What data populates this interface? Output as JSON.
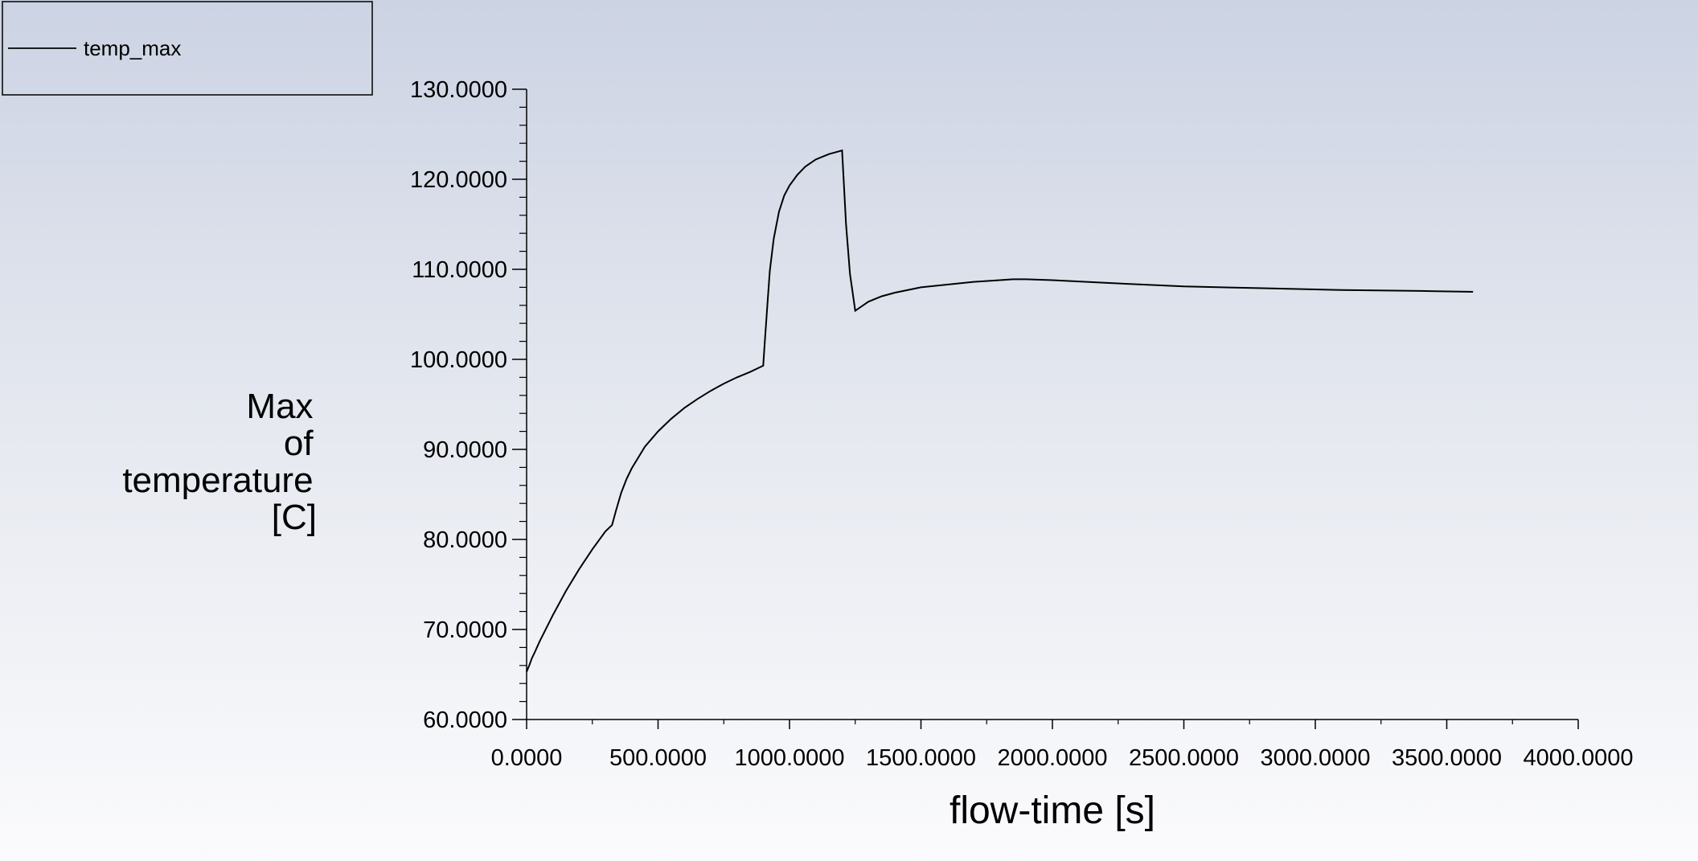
{
  "chart_data": {
    "type": "line",
    "title": "",
    "xlabel": "flow-time [s]",
    "ylabel": [
      "Max",
      "of",
      "temperature",
      "[C]"
    ],
    "xlim": [
      0,
      4000
    ],
    "ylim": [
      60,
      130
    ],
    "x_ticks": [
      0,
      500,
      1000,
      1500,
      2000,
      2500,
      3000,
      3500,
      4000
    ],
    "x_tick_labels": [
      "0.0000",
      "500.0000",
      "1000.0000",
      "1500.0000",
      "2000.0000",
      "2500.0000",
      "3000.0000",
      "3500.0000",
      "4000.0000"
    ],
    "y_ticks": [
      60,
      70,
      80,
      90,
      100,
      110,
      120,
      130
    ],
    "y_tick_labels": [
      "60.0000",
      "70.0000",
      "80.0000",
      "90.0000",
      "100.0000",
      "110.0000",
      "120.0000",
      "130.0000"
    ],
    "grid": false,
    "legend_position": "top-left",
    "line_color": "#000000",
    "series": [
      {
        "name": "temp_max",
        "x": [
          0,
          10,
          20,
          30,
          50,
          100,
          150,
          200,
          250,
          300,
          325,
          340,
          360,
          380,
          400,
          450,
          500,
          550,
          600,
          650,
          700,
          750,
          800,
          850,
          900,
          905,
          915,
          925,
          940,
          960,
          980,
          1000,
          1030,
          1060,
          1100,
          1150,
          1200,
          1215,
          1230,
          1250,
          1275,
          1300,
          1350,
          1400,
          1500,
          1600,
          1700,
          1800,
          1850,
          1900,
          2000,
          2200,
          2500,
          2800,
          3100,
          3400,
          3600
        ],
        "y": [
          65.3,
          66.0,
          66.8,
          67.4,
          68.7,
          71.6,
          74.3,
          76.7,
          78.9,
          80.9,
          81.6,
          83.2,
          85.2,
          86.7,
          87.9,
          90.3,
          92.0,
          93.4,
          94.6,
          95.6,
          96.5,
          97.3,
          98.0,
          98.6,
          99.3,
          101.5,
          105.7,
          109.8,
          113.4,
          116.4,
          118.2,
          119.3,
          120.5,
          121.4,
          122.2,
          122.8,
          123.2,
          115.0,
          109.5,
          105.4,
          105.9,
          106.4,
          107.0,
          107.4,
          108.0,
          108.3,
          108.6,
          108.8,
          108.9,
          108.9,
          108.8,
          108.5,
          108.1,
          107.9,
          107.7,
          107.6,
          107.5
        ]
      }
    ]
  }
}
